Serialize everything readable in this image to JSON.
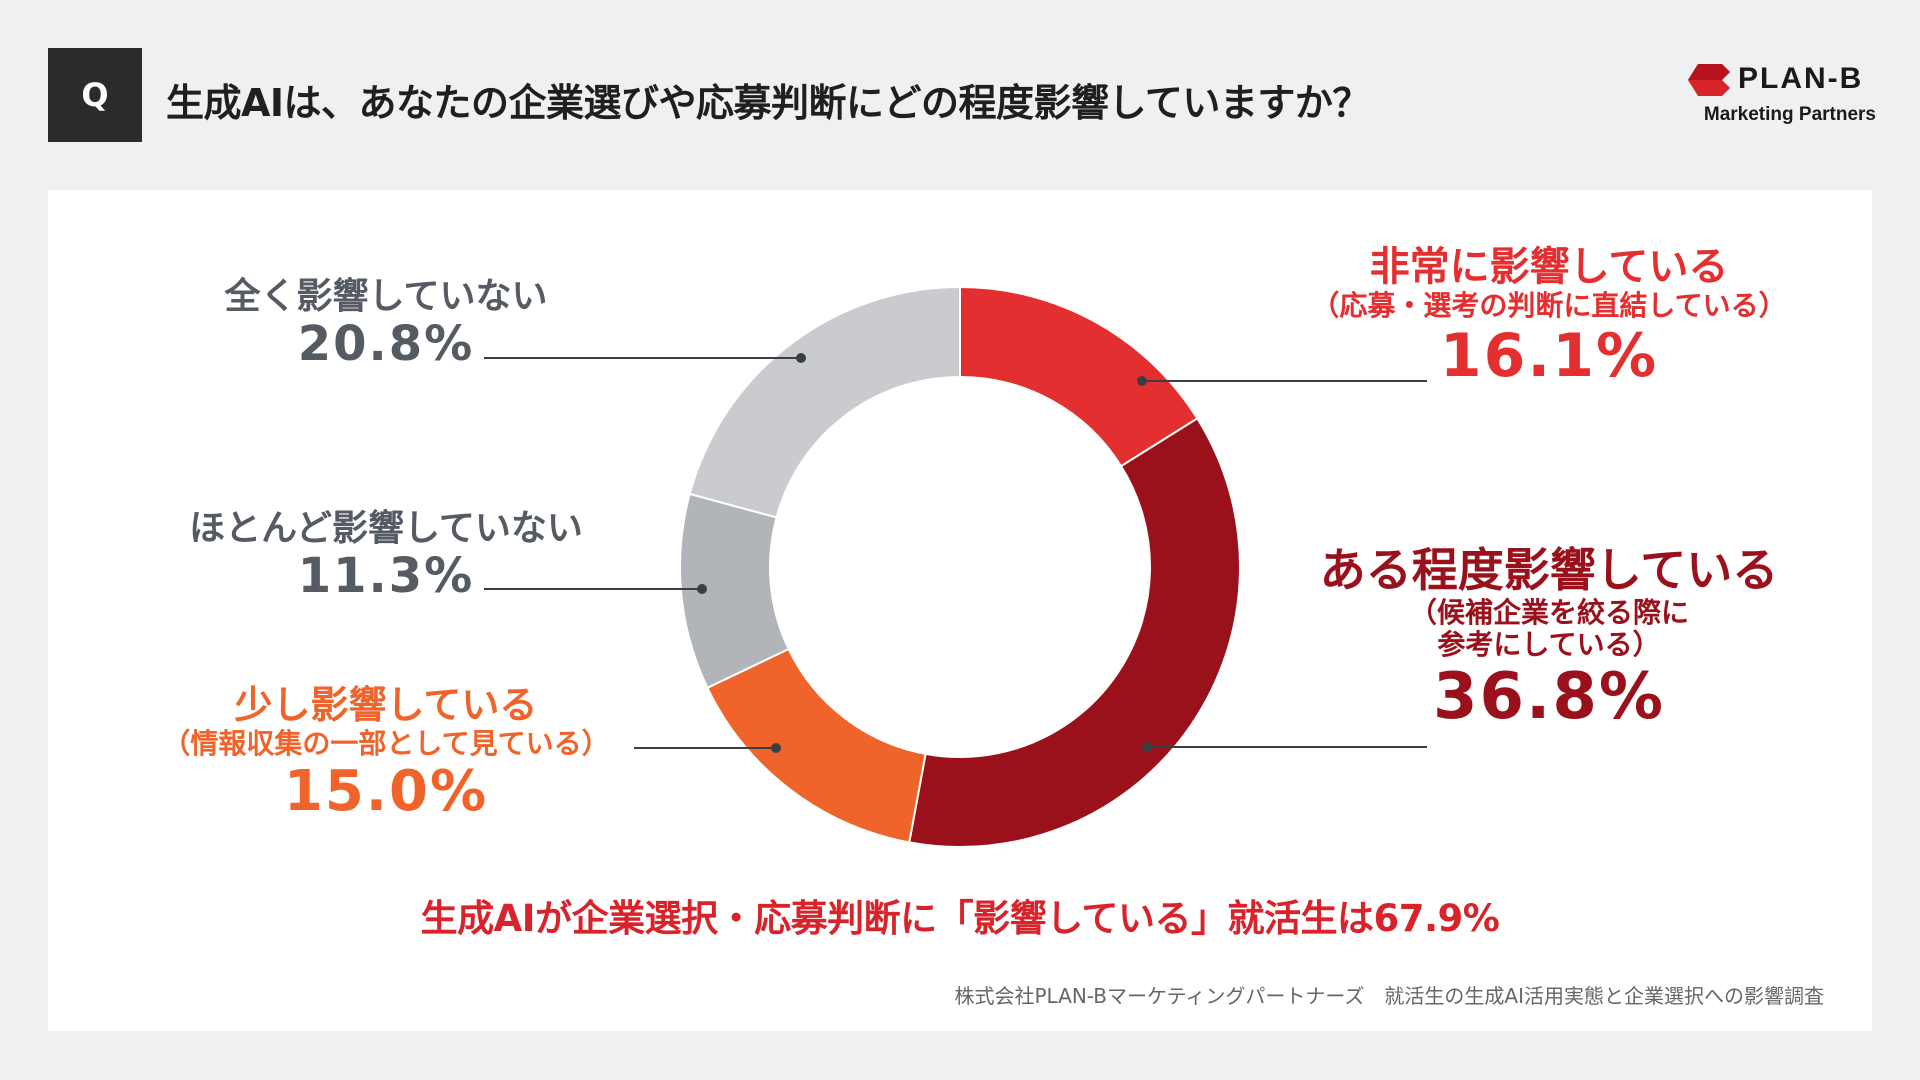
{
  "header": {
    "q_label": "Q",
    "title": "生成AIは、あなたの企業選びや応募判断にどの程度影響していますか？"
  },
  "logo": {
    "name": "PLAN-B",
    "subtitle": "Marketing Partners",
    "brand_color": "#d9232b"
  },
  "chart_data": {
    "type": "pie",
    "style": "donut",
    "start": "top, clockwise",
    "series": [
      {
        "name": "非常に影響している",
        "note": "（応募・選考の判断に直結している）",
        "value": 16.1,
        "label": "16.1%",
        "color": "#e32f2f"
      },
      {
        "name": "ある程度影響している",
        "note": "（候補企業を絞る際に",
        "note2": "参考にしている）",
        "value": 36.8,
        "label": "36.8%",
        "color": "#9a111c"
      },
      {
        "name": "少し影響している",
        "note": "（情報収集の一部として見ている）",
        "value": 15.0,
        "label": "15.0%",
        "color": "#f0632a"
      },
      {
        "name": "ほとんど影響していない",
        "value": 11.3,
        "label": "11.3%",
        "color": "#b1b4b9"
      },
      {
        "name": "全く影響していない",
        "value": 20.8,
        "label": "20.8%",
        "color": "#c9cbcf"
      }
    ],
    "label_colors": {
      "gray_text": "#555b62"
    }
  },
  "headline": "生成AIが企業選択・応募判断に「影響している」就活生は67.9%",
  "footer": "株式会社PLAN-Bマーケティングパートナーズ　就活生の生成AI活用実態と企業選択への影響調査"
}
